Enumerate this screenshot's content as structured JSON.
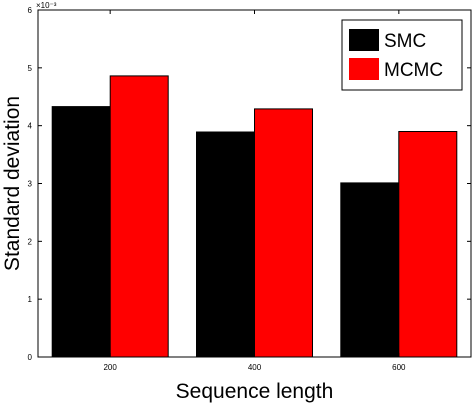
{
  "chart_data": {
    "type": "bar",
    "categories": [
      "200",
      "400",
      "600"
    ],
    "series": [
      {
        "name": "SMC",
        "values": [
          0.00433,
          0.00389,
          0.00301
        ],
        "color": "#000000"
      },
      {
        "name": "MCMC",
        "values": [
          0.00486,
          0.00429,
          0.0039
        ],
        "color": "#ff0000"
      }
    ],
    "xlabel": "Sequence length",
    "ylabel": "Standard deviation",
    "ylim": [
      0,
      0.006
    ],
    "y_tick_labels": [
      "0",
      "1",
      "2",
      "3",
      "4",
      "5",
      "6"
    ],
    "y_exponent_label": "×10⁻³",
    "grid": false,
    "legend_position": "top-right"
  }
}
